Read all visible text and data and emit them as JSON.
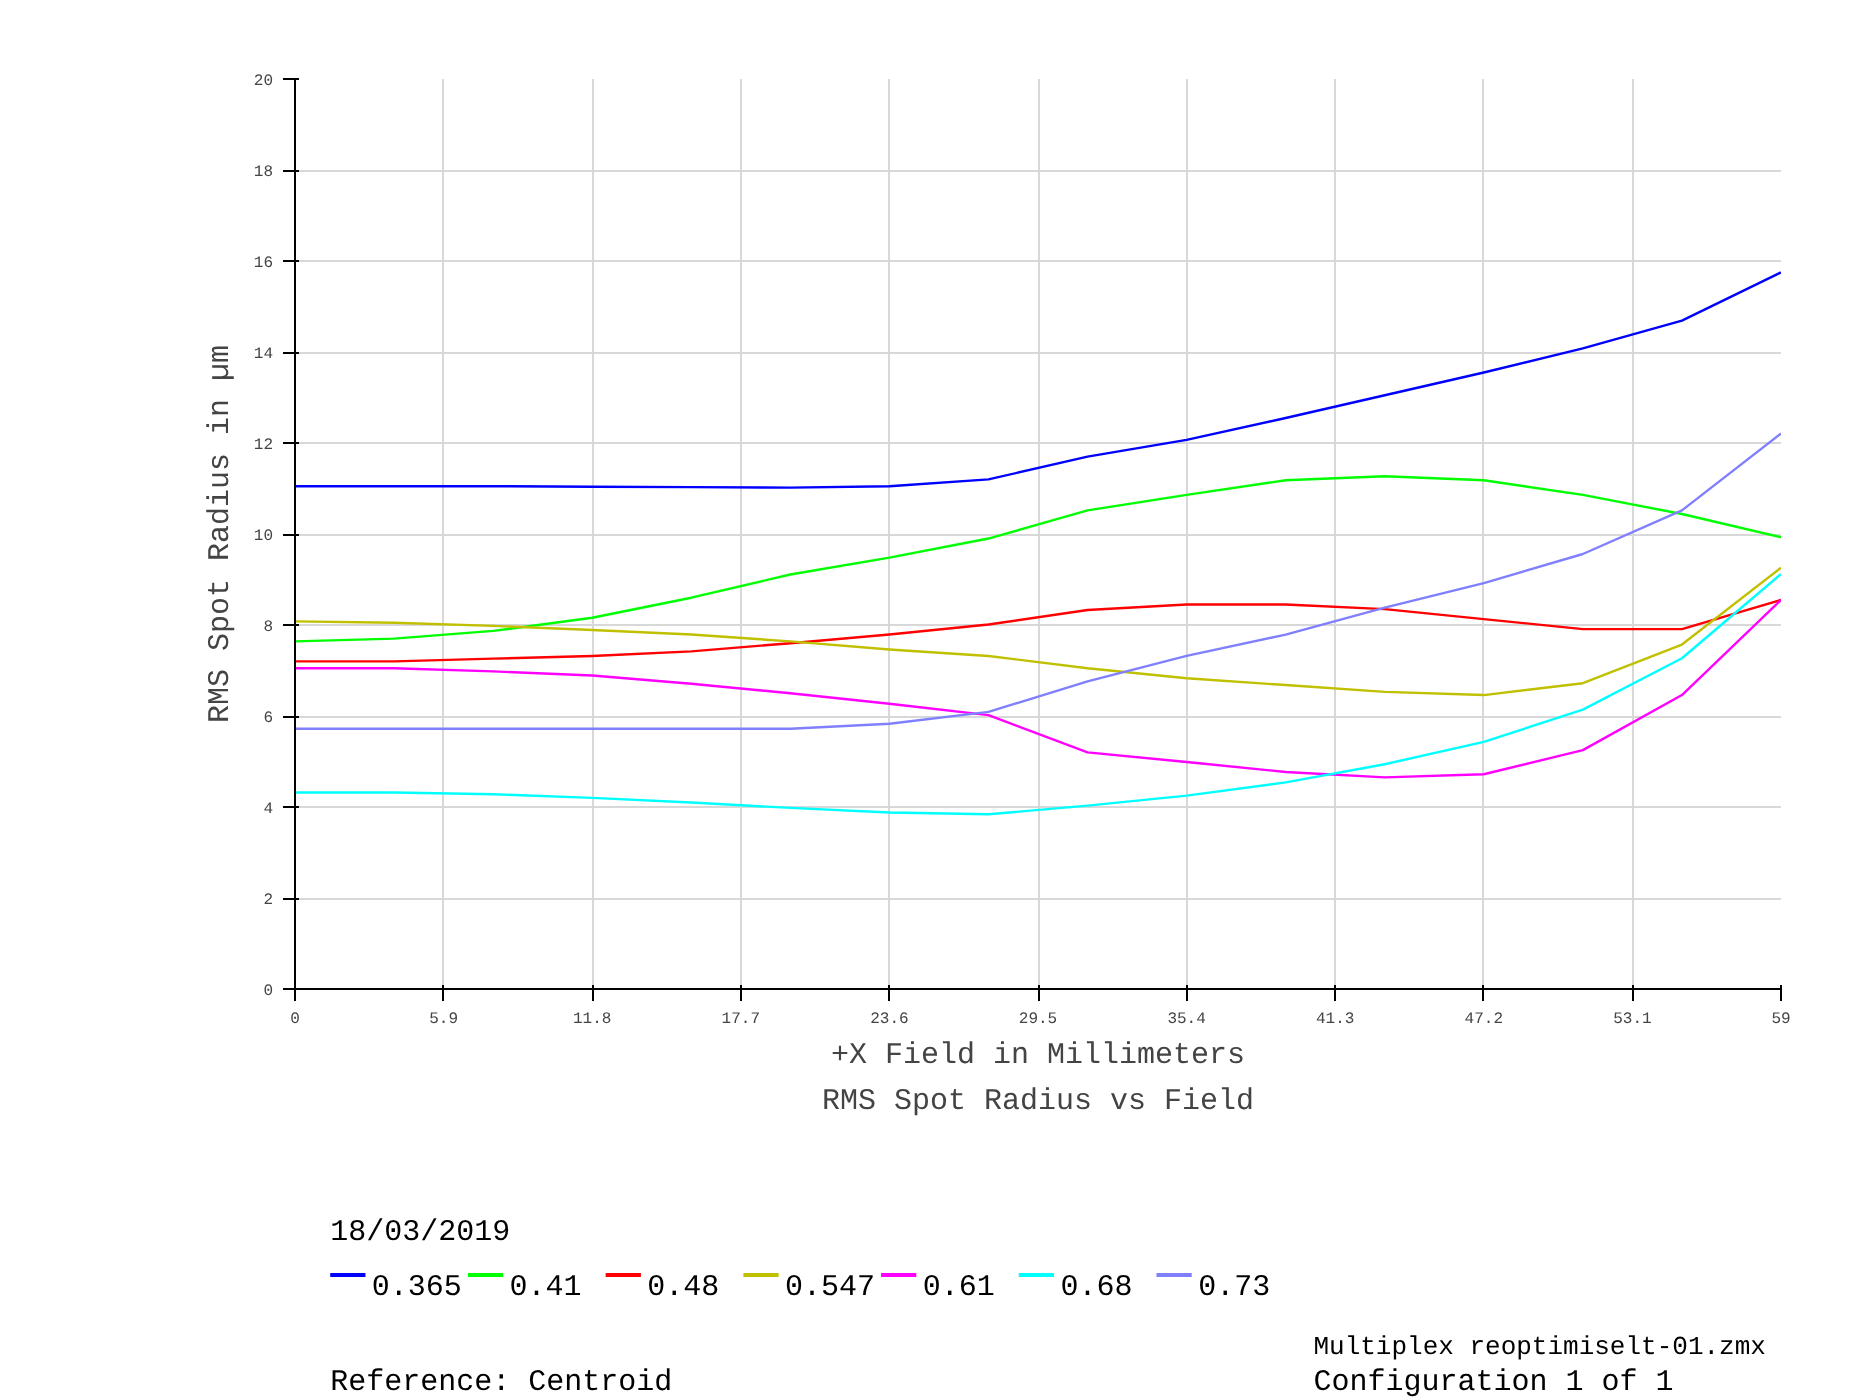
{
  "chart_data": {
    "type": "line",
    "title": "RMS Spot Radius vs Field",
    "xlabel": "+X Field in Millimeters",
    "ylabel": "RMS Spot Radius in µm",
    "x": [
      0,
      3.933,
      7.867,
      11.8,
      15.733,
      19.667,
      23.6,
      27.533,
      31.467,
      35.4,
      39.333,
      43.267,
      47.2,
      51.133,
      55.067,
      59
    ],
    "series": [
      {
        "name": "0.365",
        "color": "#0000ff",
        "values": [
          11.05,
          11.05,
          11.05,
          11.04,
          11.03,
          11.02,
          11.05,
          11.2,
          11.7,
          12.07,
          12.55,
          13.05,
          13.55,
          14.08,
          14.69,
          15.75
        ]
      },
      {
        "name": "0.41",
        "color": "#00ff00",
        "values": [
          7.64,
          7.7,
          7.87,
          8.16,
          8.6,
          9.11,
          9.48,
          9.9,
          10.52,
          10.86,
          11.18,
          11.27,
          11.18,
          10.86,
          10.44,
          9.93
        ]
      },
      {
        "name": "0.48",
        "color": "#ff0000",
        "values": [
          7.2,
          7.2,
          7.26,
          7.32,
          7.42,
          7.6,
          7.79,
          8.01,
          8.33,
          8.45,
          8.45,
          8.35,
          8.13,
          7.91,
          7.91,
          8.55
        ]
      },
      {
        "name": "0.547",
        "color": "#c0c000",
        "values": [
          8.08,
          8.05,
          7.98,
          7.89,
          7.79,
          7.64,
          7.46,
          7.32,
          7.05,
          6.83,
          6.68,
          6.53,
          6.46,
          6.72,
          7.57,
          9.26
        ]
      },
      {
        "name": "0.61",
        "color": "#ff00ff",
        "values": [
          7.05,
          7.05,
          6.98,
          6.89,
          6.71,
          6.5,
          6.27,
          6.02,
          5.2,
          4.99,
          4.77,
          4.65,
          4.72,
          5.25,
          6.46,
          8.55
        ]
      },
      {
        "name": "0.68",
        "color": "#00ffff",
        "values": [
          4.32,
          4.32,
          4.28,
          4.2,
          4.1,
          3.98,
          3.88,
          3.84,
          4.03,
          4.25,
          4.54,
          4.94,
          5.43,
          6.14,
          7.27,
          9.12
        ]
      },
      {
        "name": "0.73",
        "color": "#8080ff",
        "values": [
          5.72,
          5.72,
          5.72,
          5.72,
          5.72,
          5.72,
          5.83,
          6.09,
          6.76,
          7.32,
          7.79,
          8.38,
          8.92,
          9.56,
          10.52,
          12.21
        ]
      }
    ],
    "xlim": [
      0,
      59
    ],
    "ylim": [
      0,
      20
    ],
    "xticks": [
      0,
      5.9,
      11.8,
      17.7,
      23.6,
      29.5,
      35.4,
      41.3,
      47.2,
      53.1,
      59
    ],
    "yticks": [
      0,
      2,
      4,
      6,
      8,
      10,
      12,
      14,
      16,
      18,
      20
    ],
    "grid": true,
    "legend": "bottom",
    "line_style": "solid",
    "marker": "none",
    "annotations": [
      "18/03/2019",
      "Reference: Centroid",
      "Multiplex reoptimiselt-01.zmx",
      "Configuration 1 of 1"
    ]
  }
}
